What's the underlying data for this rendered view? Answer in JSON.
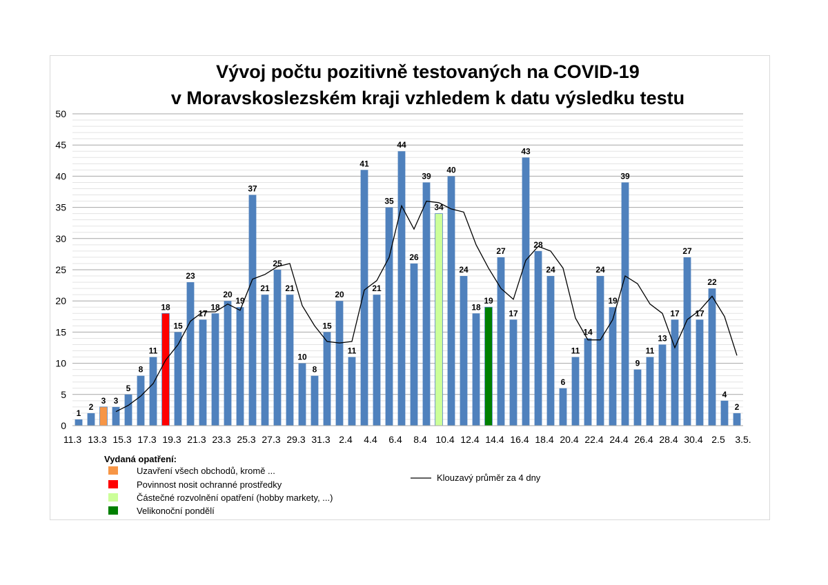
{
  "chart_data": {
    "type": "bar",
    "title_lines": [
      "Vývoj počtu pozitivně testovaných na COVID-19",
      "v Moravskoslezském kraji vzhledem k datu výsledku testu"
    ],
    "xlabel": "",
    "ylabel": "",
    "ylim": [
      0,
      50
    ],
    "yticks": [
      0,
      5,
      10,
      15,
      20,
      25,
      30,
      35,
      40,
      45,
      50
    ],
    "grid": true,
    "x_tick_labels": [
      "11.3",
      "13.3",
      "15.3",
      "17.3",
      "19.3",
      "21.3",
      "23.3",
      "25.3",
      "27.3",
      "29.3",
      "31.3",
      "2.4",
      "4.4",
      "6.4",
      "8.4",
      "10.4",
      "12.4",
      "14.4",
      "16.4",
      "18.4",
      "20.4",
      "22.4",
      "24.4",
      "26.4",
      "28.4",
      "30.4",
      "2.5",
      "3.5."
    ],
    "values": [
      1,
      2,
      3,
      3,
      5,
      8,
      11,
      18,
      15,
      23,
      17,
      18,
      20,
      19,
      37,
      21,
      25,
      21,
      10,
      8,
      15,
      20,
      11,
      41,
      21,
      35,
      44,
      26,
      39,
      34,
      40,
      24,
      18,
      19,
      27,
      17,
      43,
      28,
      24,
      6,
      11,
      14,
      24,
      19,
      39,
      9,
      11,
      13,
      17,
      27,
      17,
      22,
      4,
      2
    ],
    "bar_colors": {
      "default": "#4f81bd",
      "highlights": [
        {
          "index": 2,
          "color": "#f79646"
        },
        {
          "index": 7,
          "color": "#ff0000"
        },
        {
          "index": 29,
          "color": "#ccff99"
        },
        {
          "index": 33,
          "color": "#008000"
        }
      ]
    },
    "moving_average": {
      "name": "Klouzavý průměr za 4 dny",
      "color": "#000000",
      "start_index": 3,
      "values": [
        2.25,
        3.25,
        4.75,
        6.75,
        10.5,
        13,
        16.75,
        18.25,
        18.25,
        19.5,
        18.5,
        23.5,
        24.25,
        25.5,
        26,
        19.25,
        16,
        13.5,
        13.25,
        13.5,
        21.75,
        23.25,
        27,
        35.25,
        31.5,
        36,
        35.75,
        34.75,
        34.25,
        29,
        25.25,
        22,
        20.25,
        26.5,
        28.75,
        28,
        25.25,
        17.25,
        13.75,
        13.75,
        17,
        24,
        22.75,
        19.5,
        18,
        12.5,
        17,
        18.5,
        20.75,
        17.5,
        11.25
      ]
    },
    "legend": {
      "title": "Vydaná opatření:",
      "items": [
        {
          "label": "Uzavření všech obchodů, kromě ...",
          "color": "#f79646"
        },
        {
          "label": "Povinnost nosit ochranné prostředky",
          "color": "#ff0000"
        },
        {
          "label": "Částečné rozvolnění opatření (hobby markety, ...)",
          "color": "#ccff99"
        },
        {
          "label": "Velikonoční pondělí",
          "color": "#008000"
        }
      ],
      "line_label": "Klouzavý průměr za 4 dny"
    }
  }
}
